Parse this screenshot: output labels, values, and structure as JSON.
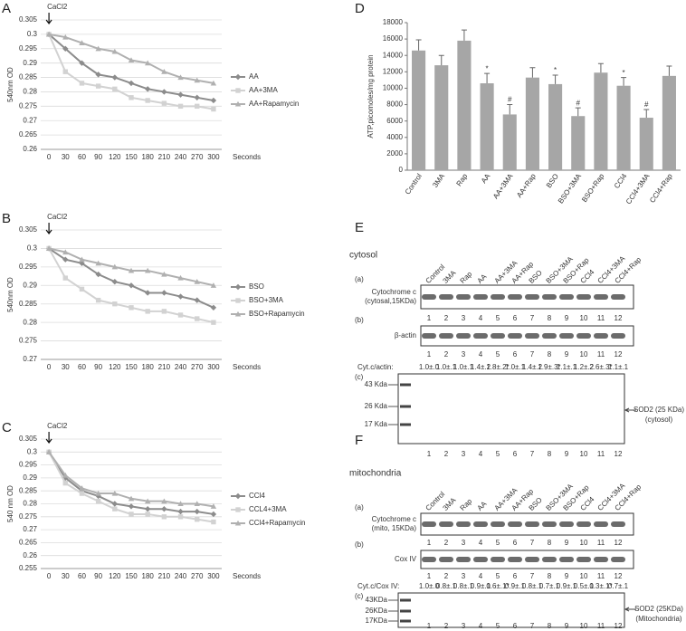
{
  "chart_data": [
    {
      "type": "line",
      "label": "A",
      "annotation": "CaCl2",
      "xlabel": "Seconds",
      "ylabel": "540nm OD",
      "x": [
        0,
        30,
        60,
        90,
        120,
        150,
        180,
        210,
        240,
        270,
        300
      ],
      "xlim": [
        -15,
        315
      ],
      "xticks": [
        0,
        30,
        60,
        90,
        120,
        150,
        180,
        210,
        240,
        270,
        300
      ],
      "ylim": [
        0.26,
        0.305
      ],
      "yticks": [
        0.305,
        0.3,
        0.295,
        0.29,
        0.285,
        0.28,
        0.275,
        0.27,
        0.265,
        0.26
      ],
      "grid": true,
      "series": [
        {
          "name": "AA",
          "color": "#8c8c8c",
          "marker": "diamond",
          "values": [
            0.3,
            0.295,
            0.29,
            0.286,
            0.285,
            0.283,
            0.281,
            0.28,
            0.279,
            0.278,
            0.277
          ]
        },
        {
          "name": "AA+3MA",
          "color": "#d2d2d2",
          "marker": "square",
          "values": [
            0.3,
            0.287,
            0.283,
            0.282,
            0.281,
            0.278,
            0.277,
            0.276,
            0.275,
            0.275,
            0.274
          ]
        },
        {
          "name": "AA+Rapamycin",
          "color": "#b0b0b0",
          "marker": "triangle",
          "values": [
            0.3,
            0.299,
            0.297,
            0.295,
            0.294,
            0.291,
            0.29,
            0.287,
            0.285,
            0.284,
            0.283
          ]
        }
      ]
    },
    {
      "type": "line",
      "label": "B",
      "annotation": "CaCl2",
      "xlabel": "Seconds",
      "ylabel": "540nm OD",
      "x": [
        0,
        30,
        60,
        90,
        120,
        150,
        180,
        210,
        240,
        270,
        300
      ],
      "xlim": [
        -15,
        315
      ],
      "xticks": [
        0,
        30,
        60,
        90,
        120,
        150,
        180,
        210,
        240,
        270,
        300
      ],
      "ylim": [
        0.27,
        0.305
      ],
      "yticks": [
        0.305,
        0.3,
        0.295,
        0.29,
        0.285,
        0.28,
        0.275,
        0.27
      ],
      "grid": true,
      "series": [
        {
          "name": "BSO",
          "color": "#8c8c8c",
          "marker": "diamond",
          "values": [
            0.3,
            0.297,
            0.296,
            0.293,
            0.291,
            0.29,
            0.288,
            0.288,
            0.287,
            0.286,
            0.284
          ]
        },
        {
          "name": "BSO+3MA",
          "color": "#d2d2d2",
          "marker": "square",
          "values": [
            0.3,
            0.292,
            0.289,
            0.286,
            0.285,
            0.284,
            0.283,
            0.283,
            0.282,
            0.281,
            0.28
          ]
        },
        {
          "name": "BSO+Rapamycin",
          "color": "#b0b0b0",
          "marker": "triangle",
          "values": [
            0.3,
            0.299,
            0.297,
            0.296,
            0.295,
            0.294,
            0.294,
            0.293,
            0.292,
            0.291,
            0.29
          ]
        }
      ]
    },
    {
      "type": "line",
      "label": "C",
      "annotation": "CaCl2",
      "xlabel": "Seconds",
      "ylabel": "540 nm OD",
      "x": [
        0,
        30,
        60,
        90,
        120,
        150,
        180,
        210,
        240,
        270,
        300
      ],
      "xlim": [
        -15,
        315
      ],
      "xticks": [
        0,
        30,
        60,
        90,
        120,
        150,
        180,
        210,
        240,
        270,
        300
      ],
      "ylim": [
        0.255,
        0.305
      ],
      "yticks": [
        0.305,
        0.3,
        0.295,
        0.29,
        0.285,
        0.28,
        0.275,
        0.27,
        0.265,
        0.26,
        0.255
      ],
      "grid": true,
      "series": [
        {
          "name": "CCl4",
          "color": "#8c8c8c",
          "marker": "diamond",
          "values": [
            0.3,
            0.29,
            0.285,
            0.283,
            0.28,
            0.279,
            0.278,
            0.278,
            0.277,
            0.277,
            0.276
          ]
        },
        {
          "name": "CCL4+3MA",
          "color": "#d2d2d2",
          "marker": "square",
          "values": [
            0.3,
            0.288,
            0.284,
            0.281,
            0.278,
            0.276,
            0.276,
            0.275,
            0.275,
            0.274,
            0.273
          ]
        },
        {
          "name": "CCl4+Rapamycin",
          "color": "#b0b0b0",
          "marker": "triangle",
          "values": [
            0.3,
            0.291,
            0.286,
            0.284,
            0.284,
            0.282,
            0.281,
            0.281,
            0.28,
            0.28,
            0.279
          ]
        }
      ]
    },
    {
      "type": "bar",
      "label": "D",
      "ylabel": "ATP,picomoles/mg protein",
      "color": "#a6a6a6",
      "categories": [
        "Control",
        "3MA",
        "Rap",
        "AA",
        "AA+3MA",
        "AA+Rap",
        "BSO",
        "BSO+3MA",
        "BSO+Rap",
        "CCl4",
        "CCl4+3MA",
        "CCl4+Rap"
      ],
      "values": [
        14600,
        12800,
        15800,
        10600,
        6800,
        11300,
        10500,
        6600,
        11900,
        10300,
        6400,
        11500
      ],
      "errors": [
        1300,
        1200,
        1300,
        1200,
        1200,
        1200,
        1100,
        1000,
        1100,
        1000,
        1000,
        1200
      ],
      "markers": [
        null,
        null,
        null,
        "*",
        "#",
        null,
        "*",
        "#",
        null,
        "*",
        "#",
        null
      ],
      "ylim": [
        0,
        18000
      ],
      "yticks": [
        0,
        2000,
        4000,
        6000,
        8000,
        10000,
        12000,
        14000,
        16000,
        18000
      ],
      "grid": false
    }
  ],
  "blots": [
    {
      "label": "E",
      "compartment": "cytosol",
      "lanes": [
        "Control",
        "3MA",
        "Rap",
        "AA",
        "AA+3MA",
        "AA+Rap",
        "BSO",
        "BSO+3MA",
        "BSO+Rap",
        "CCl4",
        "CCl4+3MA",
        "CCl4+Rap"
      ],
      "lane_numbers": [
        1,
        2,
        3,
        4,
        5,
        6,
        7,
        8,
        9,
        10,
        11,
        12
      ],
      "rows": [
        {
          "tag": "(a)",
          "name": "Cytochrome c",
          "sub": "(cytosal,15KDa)"
        },
        {
          "tag": "(b)",
          "name": "β-actin"
        }
      ],
      "ratio_label": "Cyt.c/actin:",
      "ratios": [
        "1.0±.0",
        "1.0±.1",
        "1.0±.1",
        "1.4±.2",
        "1.8±.2*",
        "1.0±.1",
        "1.4±.2",
        "1.9±.3*",
        "1.1±.1",
        "1.2±.2",
        "2.6±.3*",
        "1.1±.1"
      ],
      "sod": {
        "tag": "(c)",
        "markers": [
          "43 Kda",
          "26 Kda",
          "17 Kda"
        ],
        "name": "SOD2 (25 KDa)",
        "sub": "(cytosol)"
      }
    },
    {
      "label": "F",
      "compartment": "mitochondria",
      "lanes": [
        "Control",
        "3MA",
        "Rap",
        "AA",
        "AA+3MA",
        "AA+Rap",
        "BSO",
        "BSO+3MA",
        "BSO+Rap",
        "CCl4",
        "CCl4+3MA",
        "CCl4+Rap"
      ],
      "lane_numbers": [
        1,
        2,
        3,
        4,
        5,
        6,
        7,
        8,
        9,
        10,
        11,
        12
      ],
      "rows": [
        {
          "tag": "(a)",
          "name": "Cytochrome c",
          "sub": "(mito, 15KDa)"
        },
        {
          "tag": "(b)",
          "name": "Cox IV"
        }
      ],
      "ratio_label": "Cyt.c/Cox IV:",
      "ratios": [
        "1.0±.0",
        "0.8±.1",
        "0.8±.1",
        "0.9±.1",
        "0.6±.1*",
        "0.9±.1",
        "0.8±.1",
        "0.7±.1",
        "0.9±.1",
        "0.5±.1",
        "0.3±.1*",
        "0.7±.1"
      ],
      "sod": {
        "tag": "(c)",
        "markers": [
          "43KDa",
          "26KDa",
          "17KDa"
        ],
        "name": "SOD2 (25KDa)",
        "sub": "(Mitochondria)"
      }
    }
  ]
}
